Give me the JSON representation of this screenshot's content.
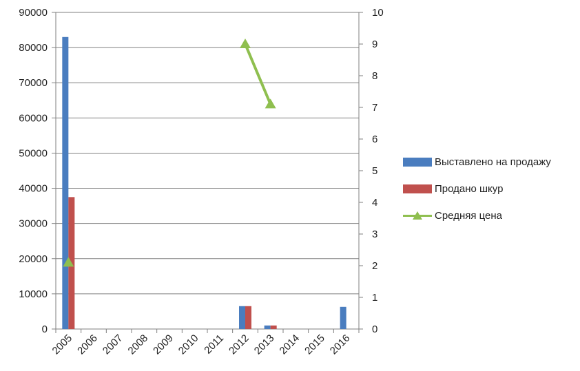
{
  "chart_data": {
    "type": "bar",
    "categories": [
      "2005",
      "2006",
      "2007",
      "2008",
      "2009",
      "2010",
      "2011",
      "2012",
      "2013",
      "2014",
      "2015",
      "2016"
    ],
    "series": [
      {
        "name": "Выставлено на продажу",
        "kind": "bar",
        "axis": "left",
        "color": "#4a7dbf",
        "values": [
          83000,
          0,
          0,
          0,
          0,
          0,
          0,
          6500,
          1000,
          0,
          0,
          6300
        ]
      },
      {
        "name": "Продано шкур",
        "kind": "bar",
        "axis": "left",
        "color": "#c0504d",
        "values": [
          37500,
          0,
          0,
          0,
          0,
          0,
          0,
          6500,
          1000,
          0,
          0,
          0
        ]
      },
      {
        "name": "Средняя  цена",
        "kind": "line",
        "axis": "right",
        "color": "#8fbf4f",
        "values": [
          2.1,
          null,
          null,
          null,
          null,
          null,
          null,
          9.0,
          7.1,
          null,
          null,
          null
        ]
      }
    ],
    "ylim_left": [
      0,
      90000
    ],
    "ylim_right": [
      0,
      10
    ],
    "yticks_left": [
      "0",
      "10000",
      "20000",
      "30000",
      "40000",
      "50000",
      "60000",
      "70000",
      "80000",
      "90000"
    ],
    "yticks_right": [
      "0",
      "1",
      "2",
      "3",
      "4",
      "5",
      "6",
      "7",
      "8",
      "9",
      "10"
    ],
    "grid": true,
    "legend": "right"
  }
}
